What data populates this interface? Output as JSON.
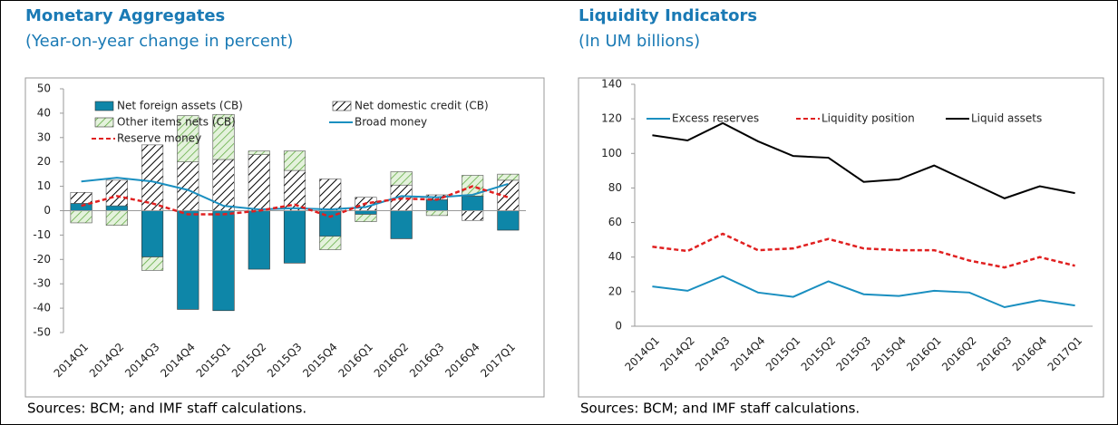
{
  "chart_data": [
    {
      "type": "bar",
      "title": "Monetary Aggregates",
      "subtitle": "(Year-on-year change in percent)",
      "source": "Sources: BCM; and IMF staff calculations.",
      "categories": [
        "2014Q1",
        "2014Q2",
        "2014Q3",
        "2014Q4",
        "2015Q1",
        "2015Q2",
        "2015Q3",
        "2015Q4",
        "2016Q1",
        "2016Q2",
        "2016Q3",
        "2016Q4",
        "2017Q1"
      ],
      "ylim": [
        -50,
        50
      ],
      "yticks": [
        -50,
        -40,
        -30,
        -20,
        -10,
        0,
        10,
        20,
        30,
        40,
        50
      ],
      "legend": "top-left",
      "series": [
        {
          "name": "Net foreign assets (CB)",
          "type": "bar",
          "style": "solid",
          "color": "#0e86a8",
          "values": [
            3,
            2,
            -19,
            -40.5,
            -41,
            -24,
            -21.5,
            -10.5,
            -1.5,
            -11.5,
            4.5,
            6,
            -8
          ]
        },
        {
          "name": "Net domestic credit (CB)",
          "type": "bar",
          "style": "hatch",
          "color": "#000000",
          "values": [
            4.5,
            10.5,
            27,
            20,
            21,
            23,
            16.5,
            13,
            5.5,
            10.5,
            2,
            -4,
            12.5
          ]
        },
        {
          "name": "Other items nets (CB)",
          "type": "bar",
          "style": "hatch",
          "color": "#5aa83a",
          "values": [
            -5,
            -6,
            -5.5,
            19,
            18.5,
            1.5,
            8,
            -5.5,
            -3,
            5.5,
            -2,
            8.5,
            2.5
          ]
        },
        {
          "name": "Broad money",
          "type": "line",
          "style": "solid",
          "color": "#1a8fc0",
          "values": [
            12,
            13.5,
            12,
            8.5,
            2,
            0.5,
            1,
            0.5,
            1.5,
            6,
            5.5,
            6.5,
            11
          ]
        },
        {
          "name": "Reserve money",
          "type": "line",
          "style": "dashed",
          "color": "#e02020",
          "values": [
            2,
            6,
            3,
            -1.5,
            -1.5,
            0,
            2.5,
            -2.5,
            3,
            5,
            4.5,
            10,
            5.5
          ]
        }
      ]
    },
    {
      "type": "line",
      "title": "Liquidity Indicators",
      "subtitle": "(In UM billions)",
      "source": "Sources: BCM; and IMF staff calculations.",
      "categories": [
        "2014Q1",
        "2014Q2",
        "2014Q3",
        "2014Q4",
        "2015Q1",
        "2015Q2",
        "2015Q3",
        "2015Q4",
        "2016Q1",
        "2016Q2",
        "2016Q3",
        "2016Q4",
        "2017Q1"
      ],
      "ylim": [
        0,
        140
      ],
      "yticks": [
        0,
        20,
        40,
        60,
        80,
        100,
        120,
        140
      ],
      "legend": "top",
      "series": [
        {
          "name": "Excess reserves",
          "type": "line",
          "style": "solid",
          "color": "#1a8fc0",
          "values": [
            23,
            20.5,
            29,
            19.5,
            17,
            26,
            18.5,
            17.5,
            20.5,
            19.5,
            11,
            15,
            12
          ]
        },
        {
          "name": "Liquidity position",
          "type": "line",
          "style": "dashed",
          "color": "#e02020",
          "values": [
            46,
            43.5,
            53.5,
            44,
            45,
            50.5,
            45,
            44,
            44,
            38,
            34,
            40,
            35
          ]
        },
        {
          "name": "Liquid assets",
          "type": "line",
          "style": "solid",
          "color": "#000000",
          "values": [
            110.5,
            107.5,
            117.5,
            107,
            98.5,
            97.5,
            83.5,
            85,
            93,
            83.5,
            74,
            81,
            77
          ]
        }
      ]
    }
  ]
}
